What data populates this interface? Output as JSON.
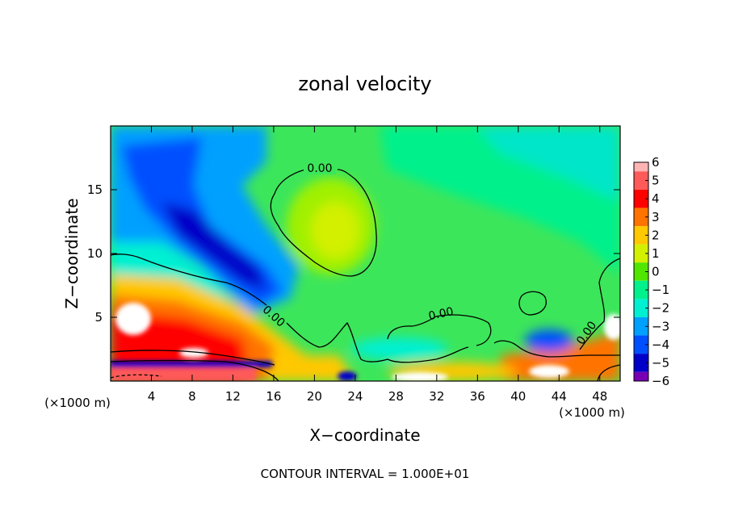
{
  "chart_data": {
    "type": "heatmap",
    "title": "zonal velocity",
    "xlabel": "X−coordinate",
    "ylabel": "Z−coordinate",
    "x_unit_left": "(×1000 m)",
    "x_unit_right": "(×1000 m)",
    "xlim": [
      0,
      50
    ],
    "ylim": [
      0,
      20
    ],
    "x_ticks": [
      4,
      8,
      12,
      16,
      20,
      24,
      28,
      32,
      36,
      40,
      44,
      48
    ],
    "x_tick_labels": [
      "4",
      "8",
      "12",
      "16",
      "20",
      "24",
      "28",
      "32",
      "36",
      "40",
      "44",
      "48"
    ],
    "y_ticks": [
      5,
      10,
      15
    ],
    "y_tick_labels": [
      "5",
      "10",
      "15"
    ],
    "colorbar": {
      "min": -6,
      "max": 6,
      "levels": [
        6,
        5,
        4,
        3,
        2,
        1,
        0,
        -1,
        -2,
        -3,
        -4,
        -5,
        -6
      ],
      "labels": [
        "6",
        "5",
        "4",
        "3",
        "2",
        "1",
        "0",
        "−1",
        "−2",
        "−3",
        "−4",
        "−5",
        "−6"
      ],
      "colors": [
        "#ffb4b4",
        "#ff5a5a",
        "#ff0000",
        "#ff7300",
        "#ffc800",
        "#d2f000",
        "#50e600",
        "#00f08c",
        "#00f0d2",
        "#00a0ff",
        "#0050ff",
        "#0000c8",
        "#7800b4"
      ]
    },
    "contour_label": "0.00",
    "contour_interval_text": "CONTOUR INTERVAL = 1.000E+01"
  }
}
